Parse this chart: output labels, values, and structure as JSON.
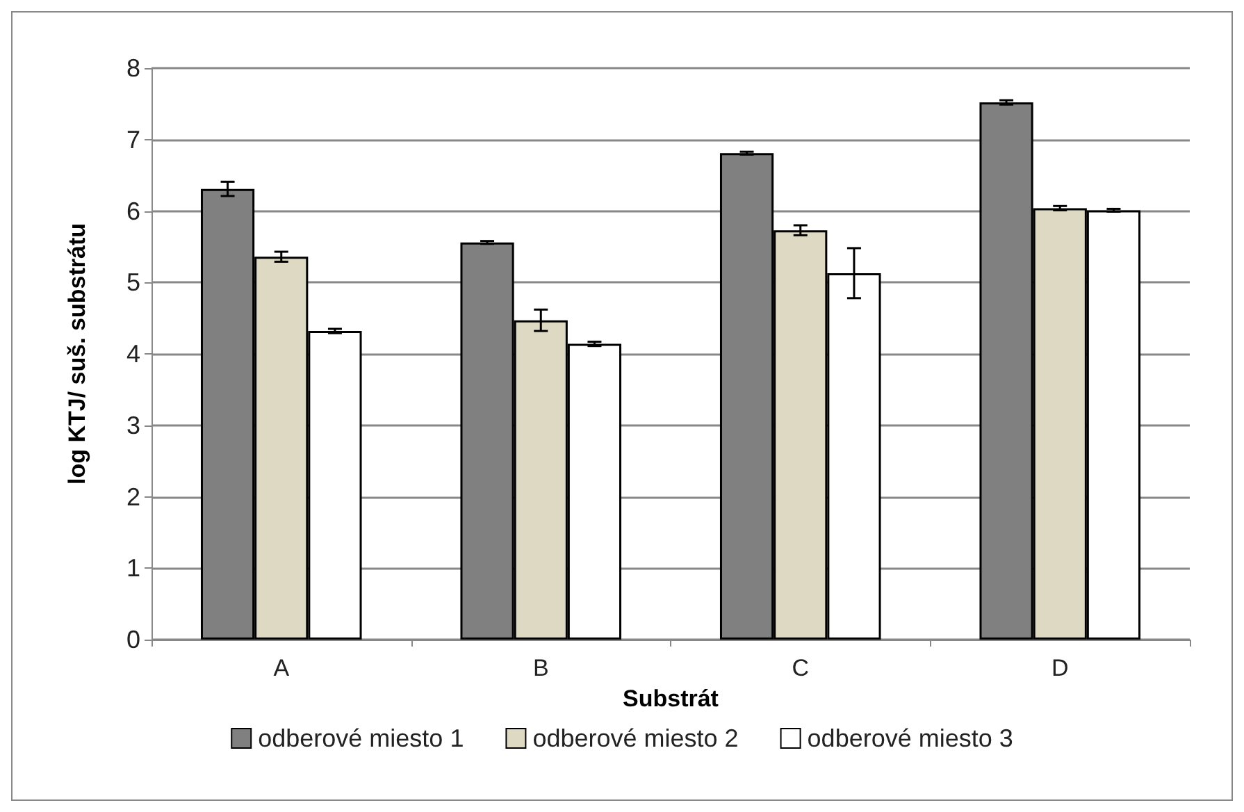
{
  "chart_data": {
    "type": "bar",
    "xlabel": "Substrát",
    "ylabel": "log KTJ/ suš. substrátu",
    "categories": [
      "A",
      "B",
      "C",
      "D"
    ],
    "series": [
      {
        "name": "odberové miesto 1",
        "color": "#808080",
        "values": [
          6.31,
          5.56,
          6.81,
          7.52
        ],
        "errors": [
          0.1,
          0.02,
          0.02,
          0.03
        ]
      },
      {
        "name": "odberové miesto 2",
        "color": "#ddd9c3",
        "values": [
          5.36,
          4.47,
          5.73,
          6.04
        ],
        "errors": [
          0.07,
          0.15,
          0.07,
          0.03
        ]
      },
      {
        "name": "odberové miesto 3",
        "color": "#ffffff",
        "values": [
          4.32,
          4.14,
          5.13,
          6.01
        ],
        "errors": [
          0.03,
          0.03,
          0.35,
          0.02
        ]
      }
    ],
    "ylim": [
      0,
      8
    ],
    "yticks": [
      0,
      1,
      2,
      3,
      4,
      5,
      6,
      7,
      8
    ],
    "grid": "y",
    "legend": "bottom"
  }
}
